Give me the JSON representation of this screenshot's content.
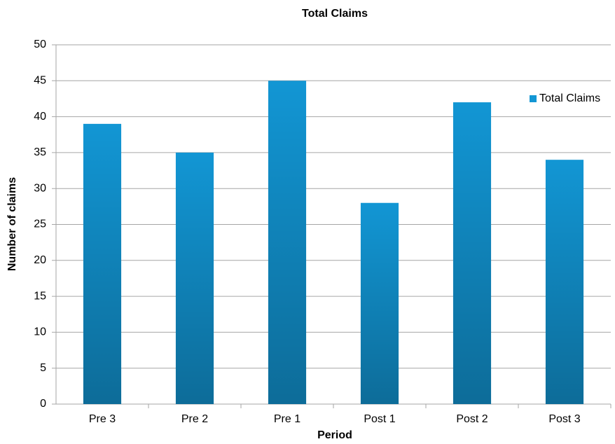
{
  "chart_data": {
    "type": "bar",
    "title": "Total Claims",
    "x_label": "Period",
    "y_label": "Number of claims",
    "categories": [
      "Pre 3",
      "Pre 2",
      "Pre 1",
      "Post 1",
      "Post 2",
      "Post 3"
    ],
    "series": [
      {
        "name": "Total Claims",
        "color": "#1296d4",
        "values": [
          39,
          35,
          45,
          28,
          42,
          34
        ]
      }
    ],
    "ylim": [
      0,
      50
    ],
    "yticks": [
      0,
      5,
      10,
      15,
      20,
      25,
      30,
      35,
      40,
      45,
      50
    ],
    "grid": true,
    "legend": "right"
  }
}
